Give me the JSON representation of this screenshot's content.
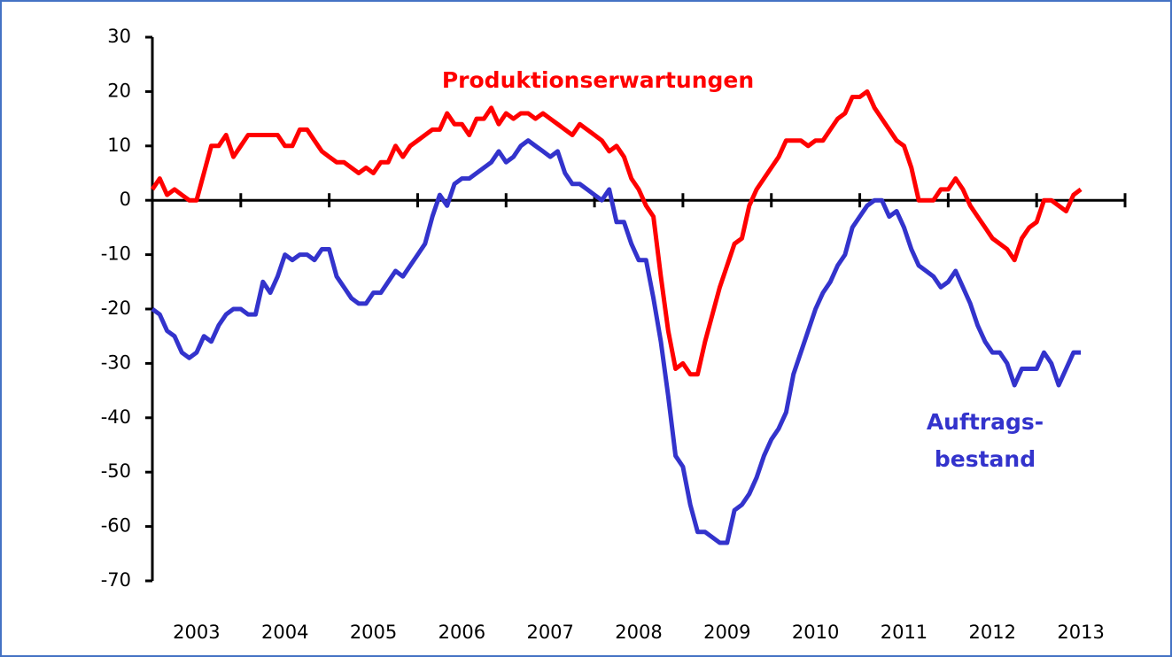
{
  "chart_data": {
    "type": "line",
    "categories": [
      null,
      null,
      null,
      null,
      null,
      null,
      "2003",
      null,
      null,
      null,
      null,
      null,
      null,
      null,
      null,
      null,
      null,
      null,
      "2004",
      null,
      null,
      null,
      null,
      null,
      null,
      null,
      null,
      null,
      null,
      null,
      "2005",
      null,
      null,
      null,
      null,
      null,
      null,
      null,
      null,
      null,
      null,
      null,
      "2006",
      null,
      null,
      null,
      null,
      null,
      null,
      null,
      null,
      null,
      null,
      null,
      "2007",
      null,
      null,
      null,
      null,
      null,
      null,
      null,
      null,
      null,
      null,
      null,
      "2008",
      null,
      null,
      null,
      null,
      null,
      null,
      null,
      null,
      null,
      null,
      null,
      "2009",
      null,
      null,
      null,
      null,
      null,
      null,
      null,
      null,
      null,
      null,
      null,
      "2010",
      null,
      null,
      null,
      null,
      null,
      null,
      null,
      null,
      null,
      null,
      null,
      "2011",
      null,
      null,
      null,
      null,
      null,
      null,
      null,
      null,
      null,
      null,
      null,
      "2012",
      null,
      null,
      null,
      null,
      null,
      null,
      null,
      null,
      null,
      null,
      null,
      "2013",
      null,
      null,
      null,
      null,
      null
    ],
    "series": [
      {
        "name": "Produktionserwartungen",
        "color": "#ff0000",
        "values": [
          2,
          4,
          1,
          2,
          1,
          0,
          0,
          5,
          10,
          10,
          12,
          8,
          10,
          12,
          12,
          12,
          12,
          12,
          10,
          10,
          13,
          13,
          11,
          9,
          8,
          7,
          7,
          6,
          5,
          6,
          5,
          7,
          7,
          10,
          8,
          10,
          11,
          12,
          13,
          13,
          16,
          14,
          14,
          12,
          15,
          15,
          17,
          14,
          16,
          15,
          16,
          16,
          15,
          16,
          15,
          14,
          13,
          12,
          14,
          13,
          12,
          11,
          9,
          10,
          8,
          4,
          2,
          -1,
          -3,
          -14,
          -24,
          -31,
          -30,
          -32,
          -32,
          -26,
          -21,
          -16,
          -12,
          -8,
          -7,
          -1,
          2,
          4,
          6,
          8,
          11,
          11,
          11,
          10,
          11,
          11,
          13,
          15,
          16,
          19,
          19,
          20,
          17,
          15,
          13,
          11,
          10,
          6,
          0,
          0,
          0,
          2,
          2,
          4,
          2,
          -1,
          -3,
          -5,
          -7,
          -8,
          -9,
          -11,
          -7,
          -5,
          -4,
          0,
          0,
          -1,
          -2,
          1,
          2,
          null,
          null,
          null,
          null,
          null
        ]
      },
      {
        "name": "Auftrags- bestand",
        "color": "#3333cc",
        "values": [
          -20,
          -21,
          -24,
          -25,
          -28,
          -29,
          -28,
          -25,
          -26,
          -23,
          -21,
          -20,
          -20,
          -21,
          -21,
          -15,
          -17,
          -14,
          -10,
          -11,
          -10,
          -10,
          -11,
          -9,
          -9,
          -14,
          -16,
          -18,
          -19,
          -19,
          -17,
          -17,
          -15,
          -13,
          -14,
          -12,
          -10,
          -8,
          -3,
          1,
          -1,
          3,
          4,
          4,
          5,
          6,
          7,
          9,
          7,
          8,
          10,
          11,
          10,
          9,
          8,
          9,
          5,
          3,
          3,
          2,
          1,
          0,
          2,
          -4,
          -4,
          -8,
          -11,
          -11,
          -18,
          -26,
          -36,
          -47,
          -49,
          -56,
          -61,
          -61,
          -62,
          -63,
          -63,
          -57,
          -56,
          -54,
          -51,
          -47,
          -44,
          -42,
          -39,
          -32,
          -28,
          -24,
          -20,
          -17,
          -15,
          -12,
          -10,
          -5,
          -3,
          -1,
          0,
          0,
          -3,
          -2,
          -5,
          -9,
          -12,
          -13,
          -14,
          -16,
          -15,
          -13,
          -16,
          -19,
          -23,
          -26,
          -28,
          -28,
          -30,
          -34,
          -31,
          -31,
          -31,
          -28,
          -30,
          -34,
          -31,
          -28,
          -28,
          null,
          null,
          null,
          null,
          null
        ]
      }
    ],
    "annotations": [
      "Produktionserwartungen",
      "Auftrags-",
      "bestand"
    ],
    "ylim": [
      -70,
      30
    ],
    "yticks": [
      -70,
      -60,
      -50,
      -40,
      -30,
      -20,
      -10,
      0,
      10,
      20,
      30
    ]
  }
}
